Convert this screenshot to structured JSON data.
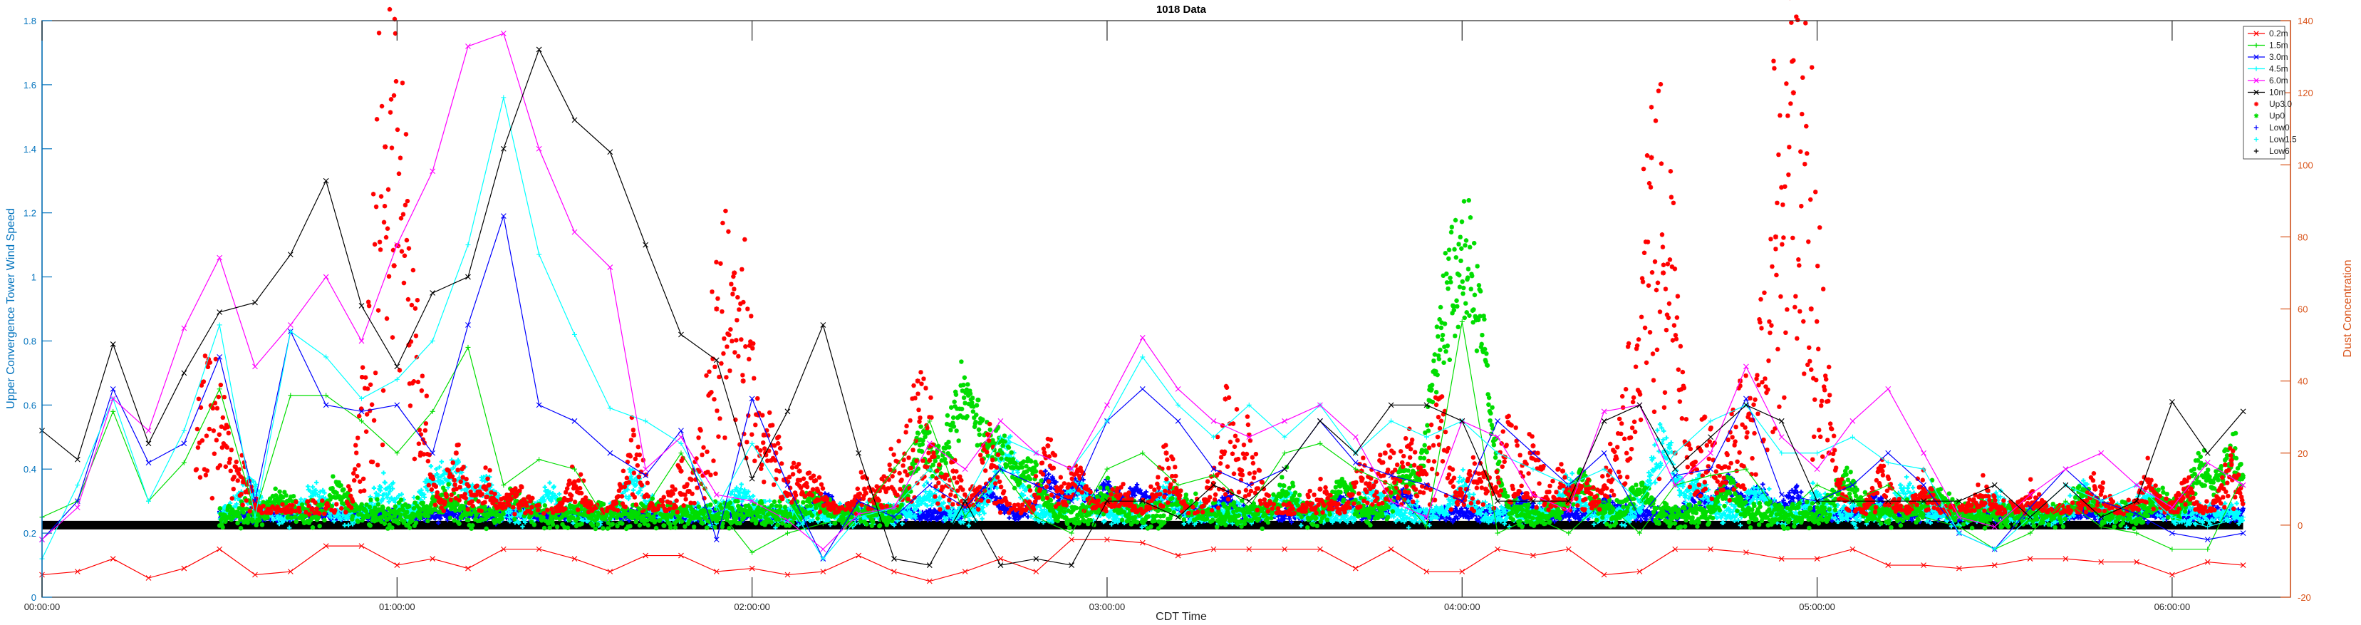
{
  "chart_data": {
    "type": "line",
    "title": "1018 Data",
    "xlabel": "CDT Time",
    "ylabel_left": "Upper Convergence Tower Wind Speed",
    "ylabel_right": "Dust Concentration",
    "xlim": [
      0,
      380
    ],
    "ylim_left": [
      0,
      1.8
    ],
    "ylim_right": [
      -20,
      140
    ],
    "x_ticks": [
      {
        "v": 0,
        "label": "00:00:00"
      },
      {
        "v": 60,
        "label": "01:00:00"
      },
      {
        "v": 120,
        "label": "02:00:00"
      },
      {
        "v": 180,
        "label": "03:00:00"
      },
      {
        "v": 240,
        "label": "04:00:00"
      },
      {
        "v": 300,
        "label": "05:00:00"
      },
      {
        "v": 360,
        "label": "06:00:00"
      }
    ],
    "y_ticks_left": [
      "0",
      "0.2",
      "0.4",
      "0.6",
      "0.8",
      "1",
      "1.2",
      "1.4",
      "1.6",
      "1.8"
    ],
    "y_ticks_right": [
      "-20",
      "0",
      "20",
      "40",
      "60",
      "80",
      "100",
      "120",
      "140"
    ],
    "grid": false,
    "legend_position": "top-right",
    "colors": {
      "left_axis": "#0072BD",
      "right_axis": "#D95319",
      "s02": "#ff0000",
      "s15": "#00dd00",
      "s30": "#0000ff",
      "s45": "#00ffff",
      "s60": "#ff00ff",
      "s10": "#000000"
    },
    "wind_x": [
      0,
      6,
      12,
      18,
      24,
      30,
      36,
      42,
      48,
      54,
      60,
      66,
      72,
      78,
      84,
      90,
      96,
      102,
      108,
      114,
      120,
      126,
      132,
      138,
      144,
      150,
      156,
      162,
      168,
      174,
      180,
      186,
      192,
      198,
      204,
      210,
      216,
      222,
      228,
      234,
      240,
      246,
      252,
      258,
      264,
      270,
      276,
      282,
      288,
      294,
      300,
      306,
      312,
      318,
      324,
      330,
      336,
      342,
      348,
      354,
      360,
      366,
      372
    ],
    "series": [
      {
        "name": "0.2m",
        "axis": "left",
        "marker": "x",
        "color_key": "s02",
        "values": [
          0.07,
          0.08,
          0.12,
          0.06,
          0.09,
          0.15,
          0.07,
          0.08,
          0.16,
          0.16,
          0.1,
          0.12,
          0.09,
          0.15,
          0.15,
          0.12,
          0.08,
          0.13,
          0.13,
          0.08,
          0.09,
          0.07,
          0.08,
          0.13,
          0.08,
          0.05,
          0.08,
          0.12,
          0.08,
          0.18,
          0.18,
          0.17,
          0.13,
          0.15,
          0.15,
          0.15,
          0.15,
          0.09,
          0.15,
          0.08,
          0.08,
          0.15,
          0.13,
          0.15,
          0.07,
          0.08,
          0.15,
          0.15,
          0.14,
          0.12,
          0.12,
          0.15,
          0.1,
          0.1,
          0.09,
          0.1,
          0.12,
          0.12,
          0.11,
          0.11,
          0.07,
          0.11,
          0.1
        ]
      },
      {
        "name": "1.5m",
        "axis": "left",
        "marker": "+",
        "color_key": "s15",
        "values": [
          0.25,
          0.3,
          0.58,
          0.3,
          0.42,
          0.65,
          0.26,
          0.63,
          0.63,
          0.55,
          0.45,
          0.58,
          0.78,
          0.35,
          0.43,
          0.4,
          0.22,
          0.28,
          0.45,
          0.28,
          0.14,
          0.2,
          0.23,
          0.25,
          0.4,
          0.55,
          0.25,
          0.4,
          0.25,
          0.2,
          0.4,
          0.45,
          0.35,
          0.38,
          0.28,
          0.45,
          0.48,
          0.4,
          0.35,
          0.22,
          0.86,
          0.2,
          0.25,
          0.2,
          0.3,
          0.2,
          0.35,
          0.38,
          0.4,
          0.25,
          0.35,
          0.3,
          0.35,
          0.25,
          0.22,
          0.15,
          0.2,
          0.3,
          0.22,
          0.2,
          0.15,
          0.15,
          0.38
        ]
      },
      {
        "name": "3.0m",
        "axis": "left",
        "marker": "x",
        "color_key": "s30",
        "values": [
          0.18,
          0.3,
          0.65,
          0.42,
          0.48,
          0.75,
          0.3,
          0.83,
          0.6,
          0.58,
          0.6,
          0.45,
          0.85,
          1.19,
          0.6,
          0.55,
          0.45,
          0.38,
          0.52,
          0.18,
          0.62,
          0.35,
          0.12,
          0.3,
          0.25,
          0.35,
          0.28,
          0.4,
          0.35,
          0.3,
          0.55,
          0.65,
          0.55,
          0.4,
          0.35,
          0.4,
          0.55,
          0.42,
          0.38,
          0.35,
          0.3,
          0.55,
          0.45,
          0.35,
          0.45,
          0.25,
          0.38,
          0.4,
          0.62,
          0.32,
          0.3,
          0.35,
          0.45,
          0.35,
          0.2,
          0.15,
          0.28,
          0.4,
          0.3,
          0.26,
          0.2,
          0.18,
          0.2
        ]
      },
      {
        "name": "4.5m",
        "axis": "left",
        "marker": "+",
        "color_key": "s45",
        "values": [
          0.12,
          0.35,
          0.62,
          0.3,
          0.52,
          0.85,
          0.25,
          0.83,
          0.75,
          0.62,
          0.68,
          0.8,
          1.1,
          1.56,
          1.07,
          0.82,
          0.59,
          0.55,
          0.48,
          0.28,
          0.48,
          0.3,
          0.12,
          0.25,
          0.28,
          0.4,
          0.3,
          0.5,
          0.45,
          0.4,
          0.55,
          0.75,
          0.6,
          0.5,
          0.6,
          0.5,
          0.6,
          0.45,
          0.55,
          0.5,
          0.55,
          0.45,
          0.4,
          0.35,
          0.4,
          0.3,
          0.45,
          0.55,
          0.6,
          0.45,
          0.45,
          0.5,
          0.42,
          0.4,
          0.2,
          0.15,
          0.25,
          0.35,
          0.3,
          0.35,
          0.25,
          0.22,
          0.25
        ]
      },
      {
        "name": "6.0m",
        "axis": "left",
        "marker": "x",
        "color_key": "s60",
        "values": [
          0.18,
          0.28,
          0.62,
          0.52,
          0.84,
          1.06,
          0.72,
          0.85,
          1.0,
          0.8,
          1.1,
          1.33,
          1.72,
          1.76,
          1.4,
          1.14,
          1.03,
          0.4,
          0.5,
          0.32,
          0.3,
          0.24,
          0.15,
          0.26,
          0.28,
          0.48,
          0.4,
          0.55,
          0.45,
          0.4,
          0.6,
          0.81,
          0.65,
          0.55,
          0.5,
          0.55,
          0.6,
          0.5,
          0.3,
          0.25,
          0.55,
          0.5,
          0.32,
          0.27,
          0.58,
          0.6,
          0.35,
          0.45,
          0.72,
          0.5,
          0.4,
          0.55,
          0.65,
          0.45,
          0.25,
          0.22,
          0.32,
          0.4,
          0.45,
          0.35,
          0.28,
          0.42,
          0.35
        ]
      },
      {
        "name": "10m",
        "axis": "left",
        "marker": "x",
        "color_key": "s10",
        "values": [
          0.52,
          0.43,
          0.79,
          0.48,
          0.7,
          0.89,
          0.92,
          1.07,
          1.3,
          0.91,
          0.72,
          0.95,
          1.0,
          1.4,
          1.71,
          1.49,
          1.39,
          1.1,
          0.82,
          0.74,
          0.37,
          0.58,
          0.85,
          0.45,
          0.12,
          0.1,
          0.3,
          0.1,
          0.12,
          0.1,
          0.3,
          0.3,
          0.25,
          0.35,
          0.3,
          0.4,
          0.55,
          0.45,
          0.6,
          0.6,
          0.55,
          0.3,
          0.3,
          0.3,
          0.55,
          0.6,
          0.4,
          0.5,
          0.6,
          0.55,
          0.3,
          0.3,
          0.3,
          0.3,
          0.3,
          0.35,
          0.25,
          0.35,
          0.25,
          0.3,
          0.61,
          0.45,
          0.58
        ]
      },
      {
        "name": "Up3.0",
        "axis": "right",
        "marker": "*",
        "color_key": "s02",
        "segments": [
          {
            "x": 26.0,
            "baseline": 3,
            "amp": 10,
            "peaks": [
              [
                28,
                45
              ],
              [
                31,
                22
              ],
              [
                34,
                12
              ],
              [
                58,
                105
              ],
              [
                59.5,
                72
              ],
              [
                62,
                50
              ],
              [
                64,
                20
              ],
              [
                70,
                20
              ],
              [
                75,
                10
              ],
              [
                80,
                8
              ],
              [
                90,
                12
              ],
              [
                100,
                25
              ],
              [
                108,
                15
              ],
              [
                114,
                60
              ],
              [
                117,
                70
              ],
              [
                118.5,
                40
              ],
              [
                122,
                25
              ],
              [
                124,
                20
              ],
              [
                128,
                15
              ],
              [
                131,
                10
              ],
              [
                139,
                10
              ],
              [
                142,
                5
              ],
              [
                144,
                15
              ],
              [
                148,
                40
              ],
              [
                150,
                18
              ],
              [
                154,
                15
              ],
              [
                160,
                25
              ],
              [
                170,
                22
              ],
              [
                175,
                15
              ],
              [
                182,
                8
              ],
              [
                190,
                20
              ],
              [
                200,
                35
              ],
              [
                204,
                25
              ],
              [
                216,
                10
              ],
              [
                223,
                15
              ],
              [
                227,
                20
              ],
              [
                231,
                22
              ],
              [
                236,
                35
              ],
              [
                242,
                12
              ],
              [
                244,
                10
              ],
              [
                248,
                28
              ],
              [
                252,
                22
              ],
              [
                257,
                15
              ],
              [
                261,
                10
              ],
              [
                265,
                15
              ],
              [
                268,
                18
              ],
              [
                272,
                102
              ],
              [
                274,
                70
              ],
              [
                276,
                20
              ],
              [
                281,
                30
              ],
              [
                287,
                40
              ],
              [
                293,
                80
              ],
              [
                296,
                120
              ],
              [
                299,
                60
              ],
              [
                302,
                20
              ],
              [
                311,
                15
              ],
              [
                318,
                10
              ],
              [
                328,
                8
              ],
              [
                336,
                8
              ],
              [
                347,
                10
              ],
              [
                356,
                12
              ],
              [
                362,
                10
              ],
              [
                370,
                18
              ]
            ],
            "end": 372
          }
        ]
      },
      {
        "name": "Up0",
        "axis": "right",
        "marker": "*",
        "color_key": "s15"
      },
      {
        "name": "Low0",
        "axis": "right",
        "marker": "+",
        "color_key": "s30"
      },
      {
        "name": "Low1.5",
        "axis": "right",
        "marker": "+",
        "color_key": "s45"
      },
      {
        "name": "Low6",
        "axis": "right",
        "marker": "+",
        "color_key": "s10",
        "constant": 0
      }
    ],
    "highfreq": {
      "Up0": {
        "start": 30,
        "end": 372,
        "baseline": 3,
        "noise": 3,
        "peaks": [
          [
            40,
            5
          ],
          [
            50,
            8
          ],
          [
            68,
            6
          ],
          [
            80,
            5
          ],
          [
            130,
            4
          ],
          [
            149,
            25
          ],
          [
            155,
            35
          ],
          [
            158,
            20
          ],
          [
            162,
            22
          ],
          [
            167,
            15
          ],
          [
            180,
            6
          ],
          [
            192,
            5
          ],
          [
            210,
            8
          ],
          [
            220,
            10
          ],
          [
            230,
            12
          ],
          [
            236,
            30
          ],
          [
            240,
            78
          ],
          [
            243,
            25
          ],
          [
            260,
            12
          ],
          [
            270,
            8
          ],
          [
            285,
            10
          ],
          [
            305,
            12
          ],
          [
            320,
            8
          ],
          [
            345,
            6
          ],
          [
            358,
            5
          ],
          [
            365,
            15
          ],
          [
            370,
            20
          ]
        ]
      },
      "Low0": {
        "start": 30,
        "end": 372,
        "baseline": 3,
        "noise": 1.5,
        "peaks": [
          [
            132,
            6
          ],
          [
            160,
            8
          ],
          [
            170,
            12
          ],
          [
            175,
            10
          ],
          [
            180,
            9
          ],
          [
            185,
            8
          ],
          [
            190,
            7
          ],
          [
            200,
            5
          ],
          [
            220,
            6
          ],
          [
            230,
            7
          ],
          [
            250,
            5
          ],
          [
            264,
            4
          ],
          [
            280,
            6
          ],
          [
            285,
            10
          ],
          [
            290,
            8
          ],
          [
            296,
            7
          ],
          [
            310,
            5
          ]
        ]
      },
      "Low1.5": {
        "start": 30,
        "end": 372,
        "baseline": 3,
        "noise": 2.5,
        "peaks": [
          [
            35,
            10
          ],
          [
            46,
            8
          ],
          [
            58,
            9
          ],
          [
            66,
            12
          ],
          [
            70,
            14
          ],
          [
            75,
            10
          ],
          [
            86,
            8
          ],
          [
            100,
            12
          ],
          [
            118,
            7
          ],
          [
            150,
            8
          ],
          [
            162,
            12
          ],
          [
            164,
            14
          ],
          [
            175,
            9
          ],
          [
            190,
            8
          ],
          [
            210,
            6
          ],
          [
            225,
            8
          ],
          [
            240,
            9
          ],
          [
            258,
            10
          ],
          [
            274,
            25
          ],
          [
            280,
            10
          ],
          [
            290,
            8
          ],
          [
            300,
            6
          ],
          [
            315,
            8
          ],
          [
            330,
            5
          ],
          [
            345,
            7
          ],
          [
            356,
            6
          ]
        ]
      },
      "Low6": {
        "start": 0,
        "end": 372
      }
    }
  }
}
